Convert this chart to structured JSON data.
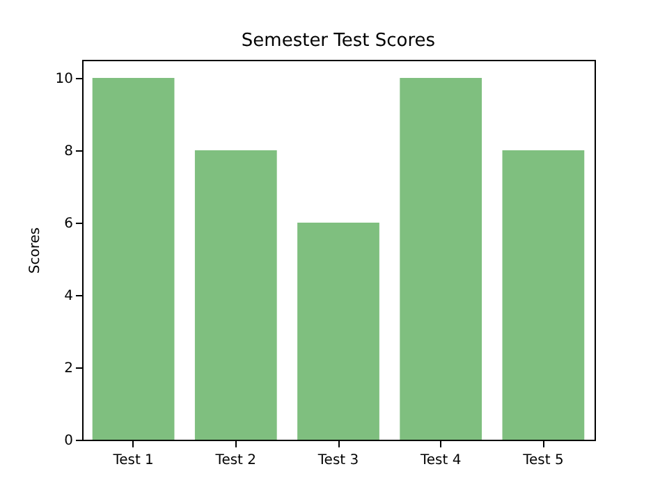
{
  "chart_data": {
    "type": "bar",
    "title": "Semester Test Scores",
    "ylabel": "Scores",
    "categories": [
      "Test 1",
      "Test 2",
      "Test 3",
      "Test 4",
      "Test 5"
    ],
    "values": [
      10,
      8,
      6,
      10,
      8
    ],
    "color": "#7fbf7f",
    "ylim": [
      0,
      10.5
    ],
    "yticks": [
      0,
      2,
      4,
      6,
      8,
      10
    ]
  }
}
